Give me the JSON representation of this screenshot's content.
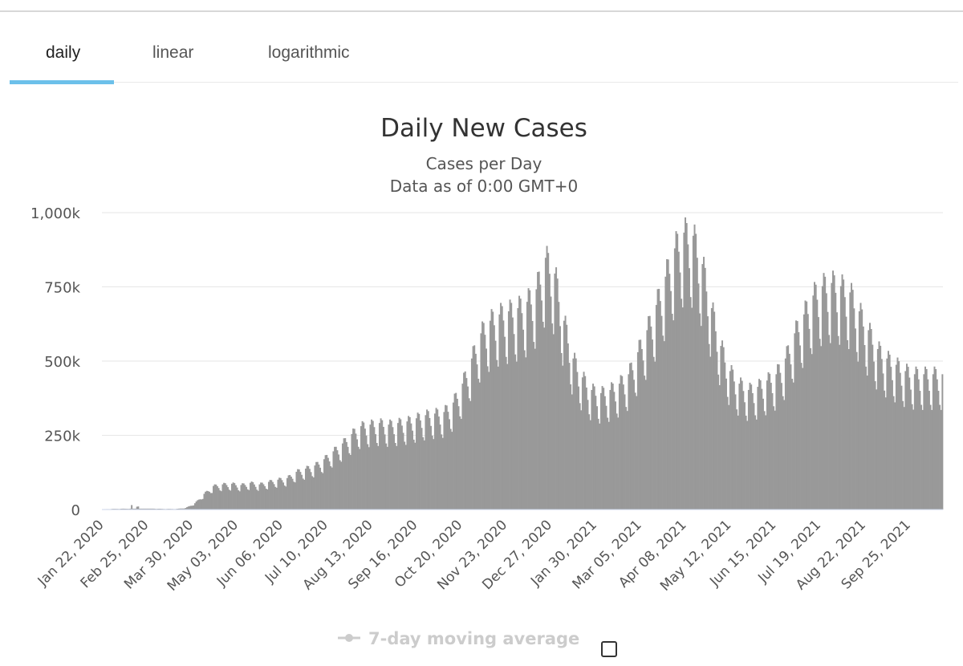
{
  "tabs": [
    {
      "label": "daily",
      "active": true
    },
    {
      "label": "linear",
      "active": false
    },
    {
      "label": "logarithmic",
      "active": false
    }
  ],
  "colors": {
    "accent": "#6cc0ea",
    "bar": "#999999",
    "legend_muted": "#cccccc"
  },
  "chart_data": {
    "type": "bar",
    "title": "Daily New Cases",
    "subtitle": [
      "Cases per Day",
      "Data as of 0:00 GMT+0"
    ],
    "xlabel": "",
    "ylabel": "",
    "ylim": [
      0,
      1000000
    ],
    "y_ticks": [
      0,
      250000,
      500000,
      750000,
      1000000
    ],
    "y_tick_labels": [
      "0",
      "250k",
      "500k",
      "750k",
      "1,000k"
    ],
    "x_range": [
      "Jan 22, 2020",
      "Oct 20, 2021"
    ],
    "x_tick_labels": [
      "Jan 22, 2020",
      "Feb 25, 2020",
      "Mar 30, 2020",
      "May 03, 2020",
      "Jun 06, 2020",
      "Jul 10, 2020",
      "Aug 13, 2020",
      "Sep 16, 2020",
      "Oct 20, 2020",
      "Nov 23, 2020",
      "Dec 27, 2020",
      "Jan 30, 2021",
      "Mar 05, 2021",
      "Apr 08, 2021",
      "May 12, 2021",
      "Jun 15, 2021",
      "Jul 19, 2021",
      "Aug 22, 2021",
      "Sep 25, 2021"
    ],
    "grid": true,
    "legend": {
      "position": "bottom",
      "items": [
        {
          "label": "7-day moving average",
          "enabled": false
        }
      ]
    },
    "series": [
      {
        "name": "",
        "start_date": "2020-01-22",
        "weekly_values": [
          1000,
          2000,
          2500,
          3000,
          15000,
          4000,
          2500,
          2000,
          2000,
          5000,
          20000,
          50000,
          75000,
          80000,
          82000,
          78000,
          85000,
          80000,
          88000,
          95000,
          100000,
          120000,
          130000,
          140000,
          160000,
          185000,
          210000,
          240000,
          265000,
          270000,
          275000,
          270000,
          275000,
          280000,
          290000,
          300000,
          305000,
          310000,
          340000,
          400000,
          480000,
          560000,
          600000,
          620000,
          630000,
          640000,
          660000,
          700000,
          800000,
          750000,
          600000,
          480000,
          420000,
          380000,
          370000,
          380000,
          400000,
          430000,
          500000,
          570000,
          650000,
          740000,
          830000,
          880000,
          870000,
          780000,
          640000,
          520000,
          440000,
          400000,
          380000,
          390000,
          410000,
          430000,
          480000,
          560000,
          620000,
          680000,
          710000,
          720000,
          710000,
          690000,
          630000,
          570000,
          510000,
          480000,
          460000,
          440000,
          430000
        ]
      }
    ]
  },
  "legend_checkbox": {
    "checked": false
  }
}
